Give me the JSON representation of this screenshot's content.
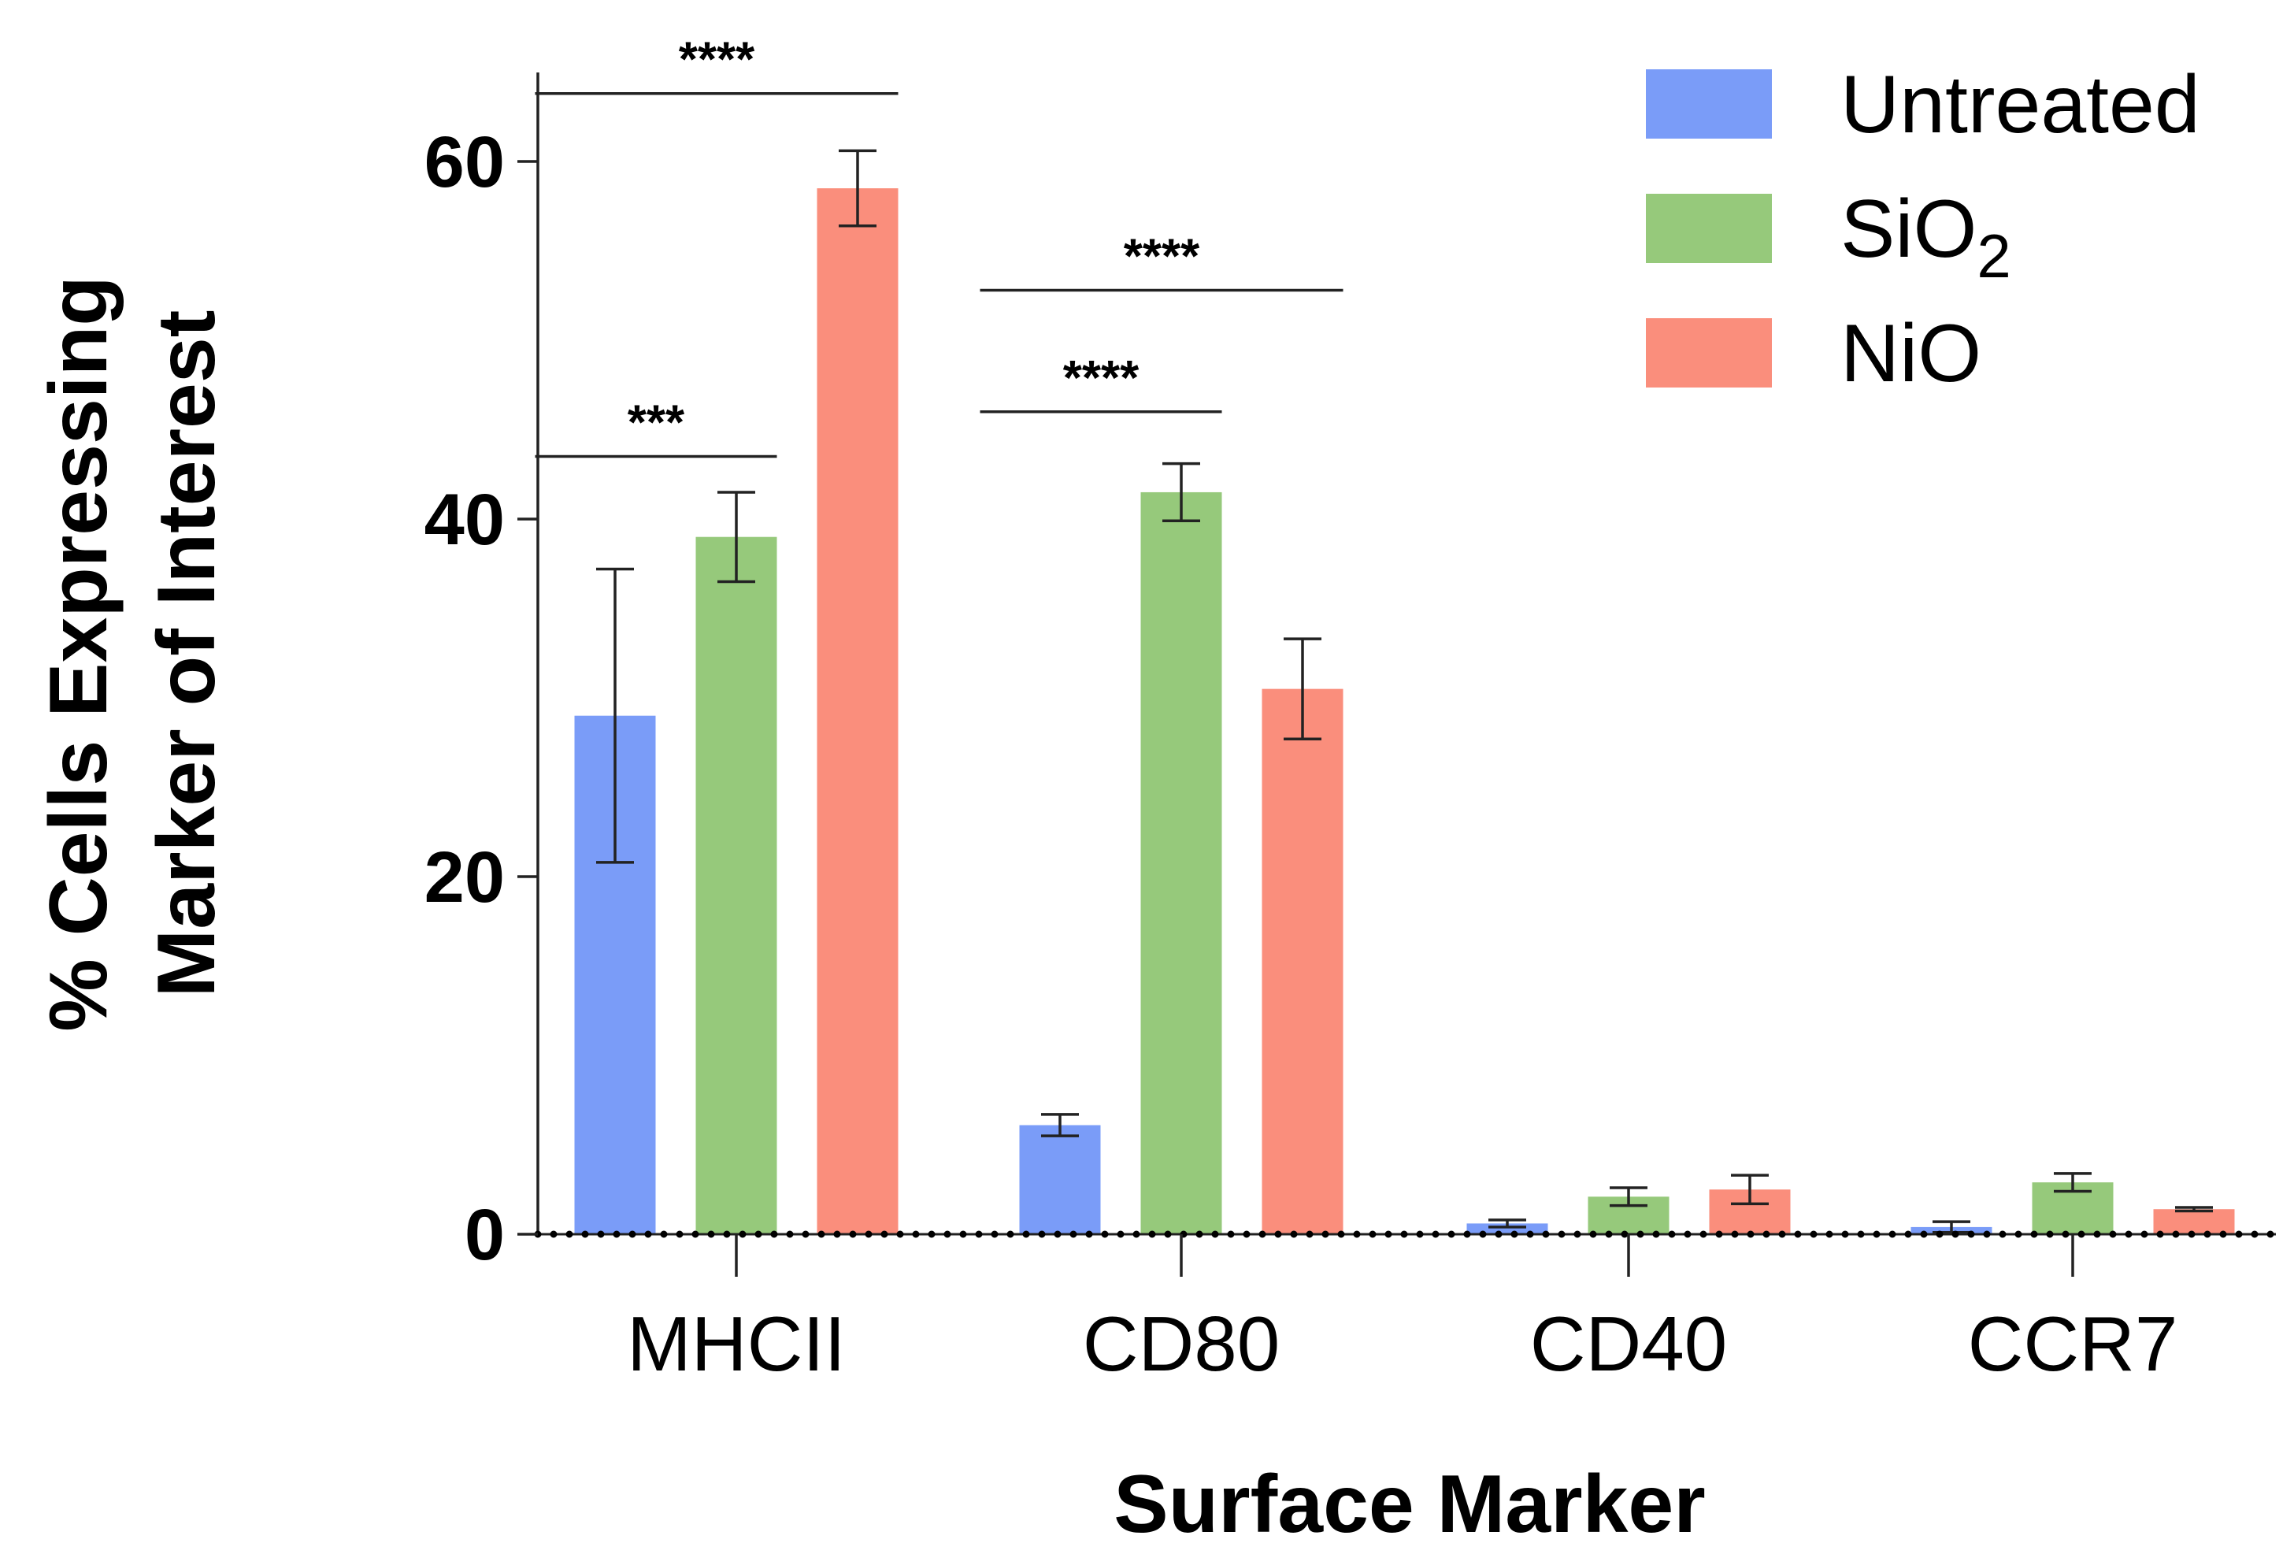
{
  "chart_data": {
    "type": "bar",
    "categories": [
      "MHCII",
      "CD80",
      "CD40",
      "CCR7"
    ],
    "series": [
      {
        "name": "Untreated",
        "color": "#7a9cf8",
        "values": [
          29.0,
          6.1,
          0.6,
          0.4
        ],
        "errors": [
          8.2,
          0.6,
          0.2,
          0.3
        ]
      },
      {
        "name": "SiO2",
        "display_base": "SiO",
        "display_sub": "2",
        "color": "#96c97b",
        "values": [
          39.0,
          41.5,
          2.1,
          2.9
        ],
        "errors": [
          2.5,
          1.6,
          0.5,
          0.5
        ]
      },
      {
        "name": "NiO",
        "color": "#fa8e7c",
        "values": [
          58.5,
          30.5,
          2.5,
          1.4
        ],
        "errors": [
          2.1,
          2.8,
          0.8,
          0.1
        ]
      }
    ],
    "title": "",
    "xlabel": "Surface Marker",
    "ylabel_line1": "% Cells Expressing",
    "ylabel_line2": "Marker of Interest",
    "ylim": [
      0,
      65
    ],
    "yticks": [
      0,
      20,
      40,
      60
    ],
    "legend_position": "top-right",
    "baseline_style": "dotted",
    "significance": [
      {
        "category": "MHCII",
        "from_series": 0,
        "to_series": 1,
        "label": "***",
        "y": 43.5
      },
      {
        "category": "MHCII",
        "from_series": 0,
        "to_series": 2,
        "label": "****",
        "y": 63.8
      },
      {
        "category": "CD80",
        "from_series": 0,
        "to_series": 1,
        "label": "****",
        "y": 46.0
      },
      {
        "category": "CD80",
        "from_series": 0,
        "to_series": 2,
        "label": "****",
        "y": 52.8
      }
    ]
  }
}
